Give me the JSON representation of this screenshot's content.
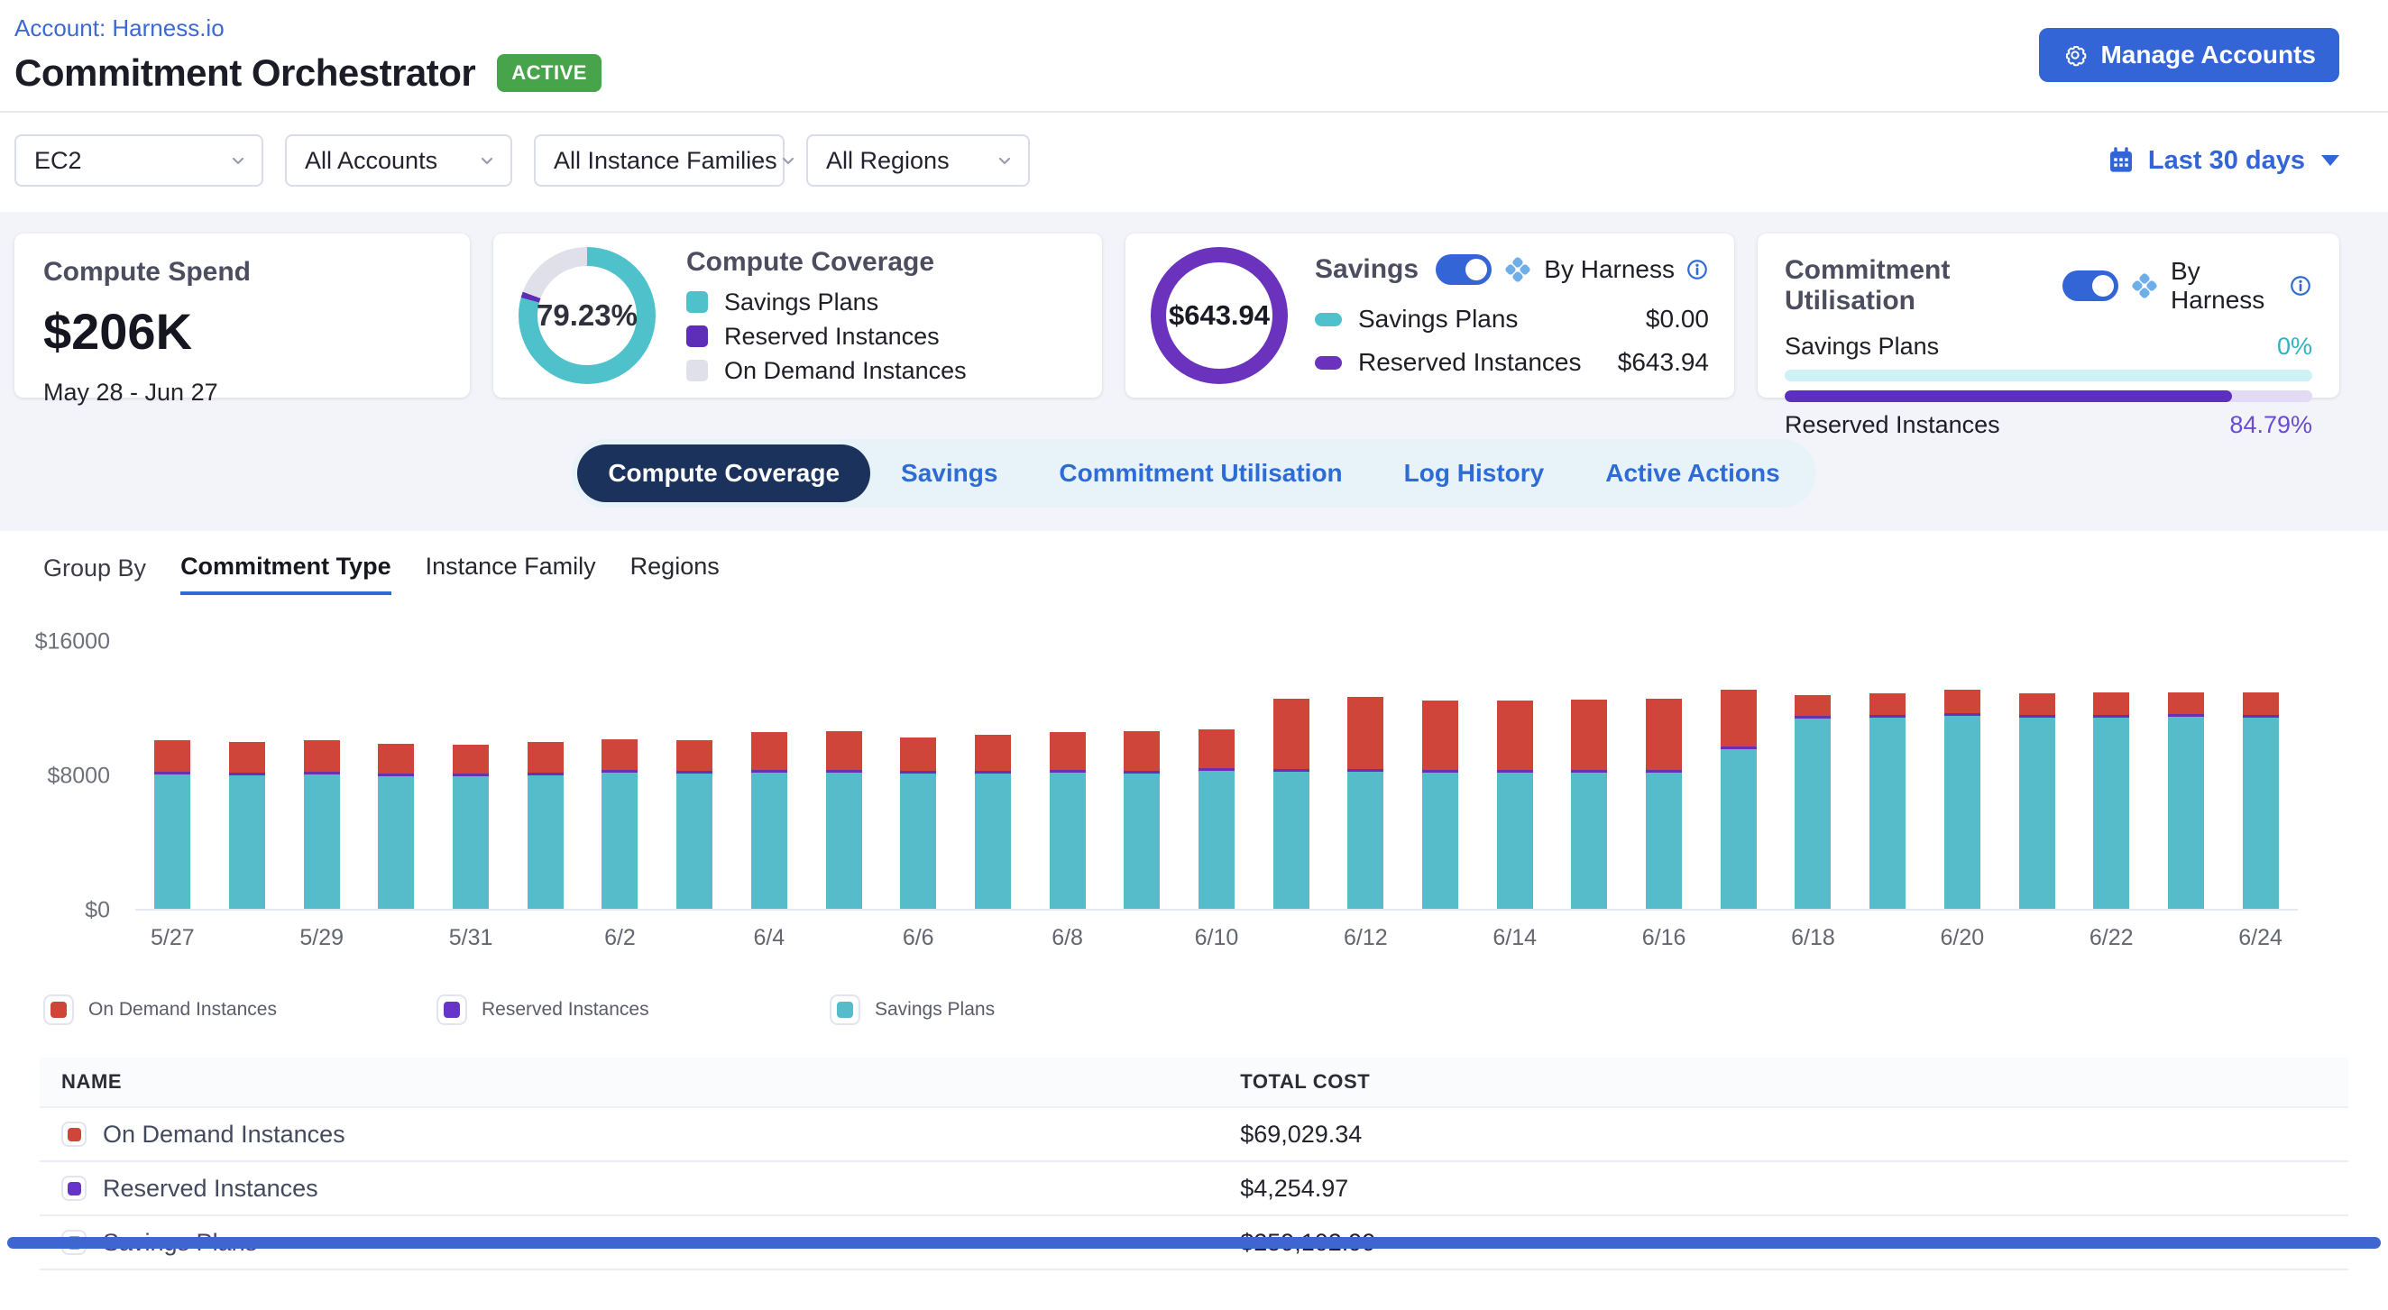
{
  "page": {
    "account_link": "Account: Harness.io",
    "title": "Commitment Orchestrator",
    "status_badge": "ACTIVE",
    "manage_accounts_label": "Manage Accounts"
  },
  "filters": {
    "service": "EC2",
    "accounts": "All Accounts",
    "instance_families": "All Instance Families",
    "regions": "All Regions",
    "date_range": "Last 30 days"
  },
  "cards": {
    "compute_spend": {
      "title": "Compute Spend",
      "value": "$206K",
      "period": "May 28 - Jun 27"
    },
    "compute_coverage": {
      "title": "Compute Coverage",
      "percentage": "79.23%",
      "donut": {
        "savings_plans_pct": 79.23,
        "reserved_pct": 1.4,
        "on_demand_pct": 19.37
      },
      "legend": [
        {
          "label": "Savings Plans",
          "color": "#4EC1CB"
        },
        {
          "label": "Reserved Instances",
          "color": "#5E2EB8"
        },
        {
          "label": "On Demand Instances",
          "color": "#DFE0EA"
        }
      ]
    },
    "savings": {
      "title": "Savings",
      "toggle_on": true,
      "by_harness_label": "By Harness",
      "total": "$643.94",
      "ring_color": "#6A32BD",
      "legend": [
        {
          "label": "Savings Plans",
          "color": "#4EC1CB",
          "value": "$0.00"
        },
        {
          "label": "Reserved Instances",
          "color": "#6A32BD",
          "value": "$643.94"
        }
      ]
    },
    "commitment_utilisation": {
      "title": "Commitment Utilisation",
      "toggle_on": true,
      "by_harness_label": "By Harness",
      "rows": [
        {
          "label": "Savings Plans",
          "value": "0%",
          "pct": 0,
          "fill": "#47B8C8",
          "track": "#CDF2F5",
          "value_color": "#2FB3C4"
        },
        {
          "label": "Reserved Instances",
          "value": "84.79%",
          "pct": 84.79,
          "fill": "#5D2FC0",
          "track": "#E4DAF6",
          "value_color": "#6A4BD1"
        }
      ]
    }
  },
  "tabs": [
    {
      "label": "Compute Coverage",
      "active": true
    },
    {
      "label": "Savings",
      "active": false
    },
    {
      "label": "Commitment Utilisation",
      "active": false
    },
    {
      "label": "Log History",
      "active": false
    },
    {
      "label": "Active Actions",
      "active": false
    }
  ],
  "group_by": {
    "label": "Group By",
    "options": [
      {
        "label": "Commitment Type",
        "active": true
      },
      {
        "label": "Instance Family",
        "active": false
      },
      {
        "label": "Regions",
        "active": false
      }
    ]
  },
  "chart_data": {
    "type": "bar",
    "stacked": true,
    "title": "",
    "xlabel": "",
    "ylabel": "",
    "ylim": [
      0,
      16000
    ],
    "yticks": [
      {
        "label": "$0",
        "value": 0
      },
      {
        "label": "$8000",
        "value": 8000
      },
      {
        "label": "$16000",
        "value": 16000
      }
    ],
    "x_tick_every": 2,
    "grid": false,
    "legend_position": "bottom",
    "x": [
      "5/27",
      "5/28",
      "5/29",
      "5/30",
      "5/31",
      "6/1",
      "6/2",
      "6/3",
      "6/4",
      "6/5",
      "6/6",
      "6/7",
      "6/8",
      "6/9",
      "6/10",
      "6/11",
      "6/12",
      "6/13",
      "6/14",
      "6/15",
      "6/16",
      "6/17",
      "6/18",
      "6/19",
      "6/20",
      "6/21",
      "6/22",
      "6/23",
      "6/24"
    ],
    "series": [
      {
        "name": "Savings Plans",
        "color": "#57BCCA",
        "values": [
          8000,
          7950,
          7980,
          7900,
          7880,
          7950,
          8100,
          8050,
          8100,
          8120,
          8050,
          8080,
          8100,
          8060,
          8200,
          8150,
          8150,
          8100,
          8100,
          8100,
          8120,
          9500,
          11350,
          11380,
          11500,
          11400,
          11400,
          11450,
          11400
        ]
      },
      {
        "name": "Reserved Instances",
        "color": "#6B30B2",
        "values": [
          147,
          147,
          147,
          147,
          147,
          147,
          147,
          147,
          147,
          147,
          147,
          147,
          147,
          147,
          147,
          147,
          147,
          147,
          147,
          147,
          147,
          147,
          147,
          147,
          147,
          147,
          147,
          147,
          147
        ]
      },
      {
        "name": "On Demand Instances",
        "color": "#D0453A",
        "values": [
          1900,
          1850,
          1880,
          1750,
          1700,
          1800,
          1850,
          1800,
          2250,
          2300,
          2000,
          2150,
          2250,
          2350,
          2300,
          4200,
          4300,
          4150,
          4150,
          4200,
          4250,
          3400,
          1250,
          1300,
          1400,
          1300,
          1350,
          1300,
          1320
        ]
      }
    ]
  },
  "chart_legend": [
    {
      "label": "On Demand Instances",
      "color": "#D0453A"
    },
    {
      "label": "Reserved Instances",
      "color": "#6634C8"
    },
    {
      "label": "Savings Plans",
      "color": "#57BCCA"
    }
  ],
  "table": {
    "columns": [
      "NAME",
      "TOTAL COST"
    ],
    "rows": [
      {
        "name": "On Demand Instances",
        "color": "#D0453A",
        "total_cost": "$69,029.34"
      },
      {
        "name": "Reserved Instances",
        "color": "#6634C8",
        "total_cost": "$4,254.97"
      },
      {
        "name": "Savings Plans",
        "color": "#57BCCA",
        "total_cost": "$259,102.99"
      }
    ]
  }
}
